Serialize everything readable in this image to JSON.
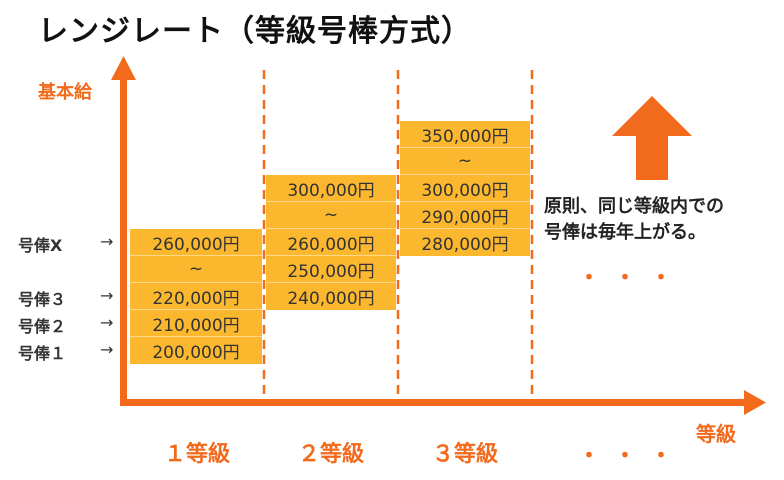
{
  "title": "レンジレート（等級号棒方式）",
  "y_axis_label": "基本給",
  "x_axis_label": "等級",
  "steps": [
    "号俸X",
    "号俸３",
    "号俸２",
    "号俸１"
  ],
  "step_arrow": "→",
  "grades": [
    {
      "label": "１等級",
      "cells": [
        "260,000円",
        "~",
        "220,000円",
        "210,000円",
        "200,000円"
      ]
    },
    {
      "label": "２等級",
      "cells": [
        "300,000円",
        "~",
        "260,000円",
        "250,000円",
        "240,000円"
      ]
    },
    {
      "label": "３等級",
      "cells": [
        "350,000円",
        "~",
        "300,000円",
        "290,000円",
        "280,000円"
      ]
    }
  ],
  "continuation": "・・・",
  "note_lines": [
    "原則、同じ等級内での",
    "号俸は毎年上がる。"
  ],
  "colors": {
    "accent": "#f26b1d",
    "cell": "#fbb82f",
    "text": "#333333"
  }
}
